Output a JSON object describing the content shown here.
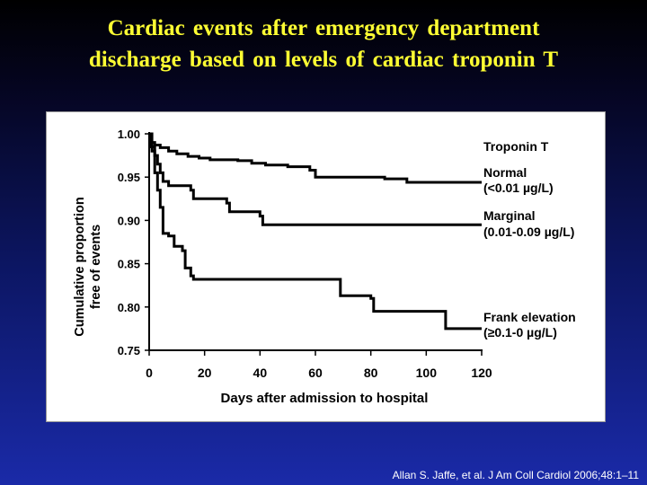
{
  "slide": {
    "title_line1": "Cardiac   events  after  emergency  department",
    "title_line2": "discharge based on levels of cardiac troponin T",
    "citation": "Allan S. Jaffe, et al. J Am Coll Cardiol 2006;48:1–11"
  },
  "chart_data": {
    "type": "line",
    "step": true,
    "title": "",
    "xlabel": "Days after admission to hospital",
    "ylabel_line1": "Cumulative proportion",
    "ylabel_line2": "free of events",
    "xlim": [
      0,
      120
    ],
    "ylim": [
      0.75,
      1.0
    ],
    "xticks": [
      0,
      20,
      40,
      60,
      80,
      100,
      120
    ],
    "yticks": [
      "0.75",
      "0.80",
      "0.85",
      "0.90",
      "0.95",
      "1.00"
    ],
    "legend_title": "Troponin T",
    "grid": false,
    "series": [
      {
        "name": "Normal",
        "name_detail": "(<0.01 µg/L)",
        "points": [
          [
            0,
            1.0
          ],
          [
            0.5,
            0.99
          ],
          [
            2,
            0.987
          ],
          [
            4,
            0.984
          ],
          [
            7,
            0.98
          ],
          [
            10,
            0.977
          ],
          [
            14,
            0.974
          ],
          [
            18,
            0.972
          ],
          [
            22,
            0.97
          ],
          [
            32,
            0.969
          ],
          [
            37,
            0.966
          ],
          [
            42,
            0.964
          ],
          [
            50,
            0.962
          ],
          [
            58,
            0.958
          ],
          [
            60,
            0.95
          ],
          [
            85,
            0.948
          ],
          [
            93,
            0.944
          ],
          [
            120,
            0.944
          ]
        ]
      },
      {
        "name": "Marginal",
        "name_detail": "(0.01-0.09 µg/L)",
        "points": [
          [
            0,
            1.0
          ],
          [
            0.5,
            0.985
          ],
          [
            2,
            0.975
          ],
          [
            3,
            0.965
          ],
          [
            4,
            0.955
          ],
          [
            5,
            0.945
          ],
          [
            7,
            0.94
          ],
          [
            15,
            0.935
          ],
          [
            16,
            0.925
          ],
          [
            28,
            0.92
          ],
          [
            29,
            0.91
          ],
          [
            40,
            0.905
          ],
          [
            41,
            0.895
          ],
          [
            120,
            0.895
          ]
        ]
      },
      {
        "name": "Frank elevation",
        "name_detail": "(≥0.1-0 µg/L)",
        "points": [
          [
            0,
            1.0
          ],
          [
            1,
            0.98
          ],
          [
            2,
            0.955
          ],
          [
            3,
            0.935
          ],
          [
            4,
            0.915
          ],
          [
            5,
            0.885
          ],
          [
            7,
            0.882
          ],
          [
            9,
            0.87
          ],
          [
            12,
            0.865
          ],
          [
            13,
            0.845
          ],
          [
            15,
            0.836
          ],
          [
            16,
            0.832
          ],
          [
            68,
            0.832
          ],
          [
            69,
            0.813
          ],
          [
            80,
            0.81
          ],
          [
            81,
            0.795
          ],
          [
            106,
            0.795
          ],
          [
            107,
            0.775
          ],
          [
            120,
            0.775
          ]
        ]
      }
    ]
  }
}
